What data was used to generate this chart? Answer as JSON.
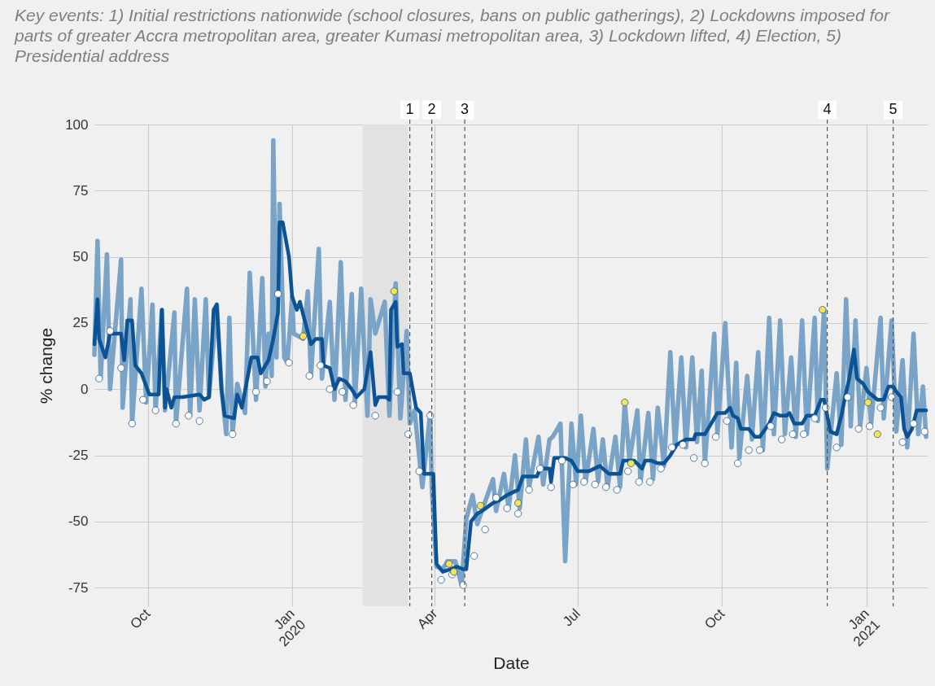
{
  "chart_data": {
    "type": "line",
    "title": "Key events: 1) Initial restrictions nationwide (school closures, bans on public gatherings), 2) Lockdowns imposed for parts of greater Accra metropolitan area, greater Kumasi metropolitan area, 3) Lockdown lifted, 4) Election, 5) Presidential address",
    "xlabel": "Date",
    "ylabel": "% change",
    "grid": true,
    "xlim": [
      "2019-08-28",
      "2021-02-09"
    ],
    "ylim": [
      -82,
      100
    ],
    "yticks": [
      -75,
      -50,
      -25,
      0,
      25,
      50,
      75,
      100
    ],
    "xticks": [
      {
        "value": "2019-10-01",
        "label": "Oct"
      },
      {
        "value": "2020-01-01",
        "label": "Jan 2020"
      },
      {
        "value": "2020-04-01",
        "label": "Apr"
      },
      {
        "value": "2020-07-01",
        "label": "Jul"
      },
      {
        "value": "2020-10-01",
        "label": "Oct"
      },
      {
        "value": "2021-01-01",
        "label": "Jan 2021"
      }
    ],
    "bands": [
      {
        "axis": "x",
        "from": "2020-02-15",
        "to": "2020-03-15",
        "color": "#e2e2e2"
      }
    ],
    "ref_lines": [
      {
        "axis": "x",
        "value": "2020-03-16",
        "label": "1",
        "color": "#555555",
        "line_style": "dashed"
      },
      {
        "axis": "x",
        "value": "2020-03-30",
        "label": "2",
        "color": "#555555",
        "line_style": "dashed"
      },
      {
        "axis": "x",
        "value": "2020-04-20",
        "label": "3",
        "color": "#555555",
        "line_style": "dashed"
      },
      {
        "axis": "x",
        "value": "2020-12-07",
        "label": "4",
        "color": "#555555",
        "line_style": "dashed"
      },
      {
        "axis": "x",
        "value": "2021-01-18",
        "label": "5",
        "color": "#555555",
        "line_style": "dashed"
      }
    ],
    "series": [
      {
        "type": "line",
        "color": "#7aa3c8",
        "x": [
          "2019-08-28",
          "2019-08-30",
          "2019-09-01",
          "2019-09-05",
          "2019-09-07",
          "2019-09-14",
          "2019-09-15",
          "2019-09-20",
          "2019-09-21",
          "2019-09-27",
          "2019-09-30",
          "2019-10-04",
          "2019-10-06",
          "2019-10-10",
          "2019-10-12",
          "2019-10-18",
          "2019-10-19",
          "2019-10-26",
          "2019-10-28",
          "2019-10-31",
          "2019-11-03",
          "2019-11-07",
          "2019-11-09",
          "2019-11-14",
          "2019-11-17",
          "2019-11-19",
          "2019-11-20",
          "2019-11-22",
          "2019-11-24",
          "2019-11-27",
          "2019-12-02",
          "2019-12-05",
          "2019-12-09",
          "2019-12-13",
          "2019-12-15",
          "2019-12-17",
          "2019-12-19",
          "2019-12-20",
          "2019-12-22",
          "2019-12-24",
          "2019-12-27",
          "2019-12-29",
          "2020-01-01",
          "2020-01-02",
          "2020-01-08",
          "2020-01-11",
          "2020-01-13",
          "2020-01-18",
          "2020-01-20",
          "2020-01-25",
          "2020-01-28",
          "2020-02-01",
          "2020-02-04",
          "2020-02-08",
          "2020-02-10",
          "2020-02-14",
          "2020-02-18",
          "2020-02-20",
          "2020-02-23",
          "2020-02-29",
          "2020-03-03",
          "2020-03-07",
          "2020-03-10",
          "2020-03-14",
          "2020-03-16",
          "2020-03-19",
          "2020-03-24",
          "2020-03-29",
          "2020-03-30",
          "2020-04-02",
          "2020-04-06",
          "2020-04-09",
          "2020-04-14",
          "2020-04-18",
          "2020-04-21",
          "2020-04-25",
          "2020-04-28",
          "2020-05-08",
          "2020-05-10",
          "2020-05-15",
          "2020-05-18",
          "2020-05-22",
          "2020-05-25",
          "2020-05-29",
          "2020-05-31",
          "2020-06-06",
          "2020-06-09",
          "2020-06-13",
          "2020-06-15",
          "2020-06-20",
          "2020-06-23",
          "2020-06-27",
          "2020-06-30",
          "2020-07-03",
          "2020-07-06",
          "2020-07-11",
          "2020-07-14",
          "2020-07-17",
          "2020-07-20",
          "2020-07-25",
          "2020-07-28",
          "2020-07-31",
          "2020-08-03",
          "2020-08-08",
          "2020-08-10",
          "2020-08-15",
          "2020-08-18",
          "2020-08-21",
          "2020-08-25",
          "2020-08-29",
          "2020-09-01",
          "2020-09-05",
          "2020-09-08",
          "2020-09-12",
          "2020-09-15",
          "2020-09-18",
          "2020-09-20",
          "2020-09-26",
          "2020-09-28",
          "2020-10-03",
          "2020-10-07",
          "2020-10-10",
          "2020-10-12",
          "2020-10-17",
          "2020-10-20",
          "2020-10-24",
          "2020-10-27",
          "2020-10-31",
          "2020-11-03",
          "2020-11-07",
          "2020-11-10",
          "2020-11-14",
          "2020-11-17",
          "2020-11-21",
          "2020-11-24",
          "2020-11-29",
          "2020-12-01",
          "2020-12-05",
          "2020-12-07",
          "2020-12-13",
          "2020-12-16",
          "2020-12-19",
          "2020-12-22",
          "2020-12-25",
          "2020-12-28",
          "2021-01-01",
          "2021-01-04",
          "2021-01-10",
          "2021-01-12",
          "2021-01-17",
          "2021-01-20",
          "2021-01-24",
          "2021-01-27",
          "2021-01-31",
          "2021-02-03",
          "2021-02-06",
          "2021-02-08"
        ],
        "values": [
          13,
          56,
          4,
          51,
          0,
          49,
          -7,
          34,
          -13,
          38,
          -5,
          32,
          -8,
          30,
          -8,
          29,
          -13,
          38,
          -10,
          34,
          -8,
          34,
          -3,
          32,
          null,
          -11,
          -17,
          27,
          -17,
          2,
          -9,
          44,
          -4,
          42,
          1,
          21,
          5,
          94,
          12,
          70,
          12,
          10,
          35,
          21,
          19,
          37,
          5,
          53,
          4,
          33,
          -4,
          48,
          -4,
          36,
          -5,
          38,
          -10,
          34,
          21,
          33,
          -10,
          40,
          -11,
          22,
          -13,
          -8,
          -37,
          -9,
          -37,
          -67,
          -68,
          -65,
          -65,
          -74,
          -49,
          -40,
          -51,
          -34,
          -46,
          -32,
          -45,
          -25,
          -45,
          -19,
          -37,
          -18,
          -36,
          -19,
          -18,
          -13,
          -65,
          -13,
          -36,
          -10,
          -35,
          -15,
          -35,
          -19,
          -37,
          -18,
          -37,
          -5,
          -27,
          -8,
          -35,
          -9,
          -34,
          -7,
          -29,
          14,
          -22,
          12,
          -22,
          12,
          -20,
          7,
          -28,
          21,
          -17,
          25,
          -22,
          10,
          -26,
          5,
          -19,
          14,
          -23,
          27,
          -17,
          26,
          -17,
          12,
          -18,
          26,
          -17,
          27,
          -12,
          30,
          -30,
          6,
          -21,
          34,
          -14,
          26,
          -14,
          8,
          -13,
          27,
          -11,
          26,
          -16,
          11,
          -22,
          21,
          -17,
          1,
          -18
        ]
      },
      {
        "type": "line",
        "color": "#0b5394",
        "x": [
          "2019-08-28",
          "2019-08-30",
          "2019-08-31",
          "2019-09-04",
          "2019-09-07",
          "2019-09-14",
          "2019-09-16",
          "2019-09-18",
          "2019-09-21",
          "2019-09-23",
          "2019-09-27",
          "2019-10-02",
          "2019-10-08",
          "2019-10-10",
          "2019-10-12",
          "2019-10-13",
          "2019-10-16",
          "2019-10-18",
          "2019-10-23",
          "2019-11-03",
          "2019-11-06",
          "2019-11-09",
          "2019-11-12",
          "2019-11-14",
          "2019-11-17",
          "2019-11-19",
          "2019-11-25",
          "2019-11-27",
          "2019-11-30",
          "2019-12-06",
          "2019-12-10",
          "2019-12-12",
          "2019-12-17",
          "2019-12-20",
          "2019-12-23",
          "2019-12-24",
          "2019-12-26",
          "2019-12-30",
          "2020-01-01",
          "2020-01-04",
          "2020-01-06",
          "2020-01-09",
          "2020-01-13",
          "2020-01-16",
          "2020-01-20",
          "2020-01-21",
          "2020-01-25",
          "2020-01-28",
          "2020-01-31",
          "2020-02-04",
          "2020-02-08",
          "2020-02-11",
          "2020-02-16",
          "2020-02-20",
          "2020-02-23",
          "2020-02-25",
          "2020-03-01",
          "2020-03-03",
          "2020-03-04",
          "2020-03-07",
          "2020-03-08",
          "2020-03-11",
          "2020-03-12",
          "2020-03-16",
          "2020-03-20",
          "2020-03-23",
          "2020-03-25",
          "2020-03-31",
          "2020-04-02",
          "2020-04-06",
          "2020-04-11",
          "2020-04-15",
          "2020-04-19",
          "2020-04-21",
          "2020-04-24",
          "2020-04-28",
          "2020-05-01",
          "2020-05-08",
          "2020-05-12",
          "2020-05-17",
          "2020-05-24",
          "2020-05-27",
          "2020-06-02",
          "2020-06-05",
          "2020-06-07",
          "2020-06-13",
          "2020-06-14",
          "2020-06-16",
          "2020-06-23",
          "2020-06-27",
          "2020-07-01",
          "2020-07-08",
          "2020-07-15",
          "2020-07-21",
          "2020-07-28",
          "2020-07-30",
          "2020-08-06",
          "2020-08-11",
          "2020-08-13",
          "2020-08-17",
          "2020-08-21",
          "2020-08-25",
          "2020-08-29",
          "2020-09-02",
          "2020-09-08",
          "2020-09-13",
          "2020-09-14",
          "2020-09-20",
          "2020-09-25",
          "2020-09-28",
          "2020-10-03",
          "2020-10-06",
          "2020-10-08",
          "2020-10-11",
          "2020-10-13",
          "2020-10-18",
          "2020-10-22",
          "2020-10-25",
          "2020-10-31",
          "2020-11-03",
          "2020-11-07",
          "2020-11-11",
          "2020-11-13",
          "2020-11-16",
          "2020-11-21",
          "2020-11-24",
          "2020-11-29",
          "2020-12-01",
          "2020-12-03",
          "2020-12-05",
          "2020-12-09",
          "2020-12-13",
          "2020-12-16",
          "2020-12-18",
          "2020-12-21",
          "2020-12-24",
          "2020-12-26",
          "2020-12-30",
          "2021-01-02",
          "2021-01-06",
          "2021-01-08",
          "2021-01-12",
          "2021-01-15",
          "2021-01-18",
          "2021-01-20",
          "2021-01-23",
          "2021-01-25",
          "2021-01-27",
          "2021-01-30",
          "2021-02-02",
          "2021-02-08"
        ],
        "values": [
          17,
          34,
          19,
          12,
          21,
          21,
          11,
          26,
          26,
          9,
          6,
          -2,
          -2,
          30,
          -7,
          0,
          -7,
          -3,
          -3,
          -2,
          -4,
          -3,
          30,
          32,
          null,
          -10,
          -11,
          -2,
          -7,
          12,
          12,
          6,
          11,
          19,
          29,
          63,
          63,
          50,
          35,
          30,
          33,
          26,
          17,
          19,
          19,
          9,
          8,
          0,
          4,
          3,
          0,
          -3,
          0,
          14,
          -6,
          -3,
          -3,
          -4,
          30,
          33,
          16,
          17,
          6,
          6,
          -7,
          -9,
          -32,
          -32,
          -66,
          -69,
          -68,
          -67,
          -68,
          -68,
          -50,
          -47,
          -46,
          -43,
          -42,
          -40,
          -38,
          -33,
          -33,
          -33,
          -30,
          -30,
          -35,
          -26,
          -26,
          -27,
          -31,
          -31,
          -29,
          -32,
          -32,
          -27,
          -27,
          -30,
          -27,
          -27,
          -28,
          -28,
          -25,
          -21,
          -19,
          -19,
          -17,
          -17,
          -12,
          -9,
          -9,
          -7,
          -10,
          -11,
          -15,
          -15,
          -18,
          -18,
          -13,
          -9,
          -10,
          -10,
          -9,
          -13,
          -13,
          -10,
          -10,
          -7,
          -4,
          -4,
          -16,
          -17,
          -10,
          -4,
          4,
          15,
          4,
          2,
          -1,
          -3,
          -4,
          -4,
          1,
          1,
          -1,
          -3,
          -15,
          -18,
          -15,
          -8,
          -8
        ]
      },
      {
        "type": "scatter",
        "marker": "circle",
        "color": "#ffffff",
        "x": [
          "2019-08-31",
          "2019-09-07",
          "2019-09-14",
          "2019-09-21",
          "2019-09-28",
          "2019-10-06",
          "2019-10-19",
          "2019-10-27",
          "2019-11-03",
          "2019-11-24",
          "2019-12-09",
          "2019-12-16",
          "2019-12-23",
          "2019-12-30",
          "2020-01-12",
          "2020-01-19",
          "2020-01-25",
          "2020-02-02",
          "2020-02-09",
          "2020-02-23",
          "2020-03-08",
          "2020-03-15",
          "2020-03-22",
          "2020-03-29",
          "2020-04-05",
          "2020-04-12",
          "2020-04-19",
          "2020-04-26",
          "2020-05-03",
          "2020-05-10",
          "2020-05-17",
          "2020-05-24",
          "2020-05-31",
          "2020-06-07",
          "2020-06-14",
          "2020-06-21",
          "2020-06-28",
          "2020-07-05",
          "2020-07-12",
          "2020-07-19",
          "2020-07-26",
          "2020-08-02",
          "2020-08-09",
          "2020-08-16",
          "2020-08-23",
          "2020-08-30",
          "2020-09-06",
          "2020-09-13",
          "2020-09-20",
          "2020-09-27",
          "2020-10-04",
          "2020-10-11",
          "2020-10-18",
          "2020-10-25",
          "2020-11-01",
          "2020-11-08",
          "2020-11-15",
          "2020-11-22",
          "2020-11-29",
          "2020-12-06",
          "2020-12-13",
          "2020-12-20",
          "2020-12-27",
          "2021-01-03",
          "2021-01-10",
          "2021-01-17",
          "2021-01-24",
          "2021-01-31",
          "2021-02-07"
        ],
        "values": [
          4,
          22,
          8,
          -13,
          -4,
          -8,
          -13,
          -10,
          -12,
          -17,
          -1,
          3,
          36,
          10,
          5,
          9,
          0,
          -1,
          -6,
          -10,
          -1,
          -17,
          -31,
          -10,
          -72,
          -70,
          -74,
          -63,
          -53,
          -41,
          -45,
          -47,
          -38,
          -30,
          -37,
          -27,
          -36,
          -35,
          -36,
          -37,
          -38,
          -31,
          -35,
          -35,
          -30,
          -22,
          -21,
          -26,
          -28,
          -18,
          -12,
          -28,
          -23,
          -23,
          -14,
          -19,
          -17,
          -17,
          -11,
          -7,
          -22,
          -3,
          -15,
          -14,
          -7,
          -3,
          -20,
          -13,
          -16
        ]
      },
      {
        "type": "scatter",
        "marker": "circle",
        "color": "#f7e34a",
        "x": [
          "2020-01-08",
          "2020-03-06",
          "2020-04-10",
          "2020-04-13",
          "2020-04-30",
          "2020-05-24",
          "2020-07-31",
          "2020-08-04",
          "2020-12-04",
          "2021-01-02",
          "2021-01-08"
        ],
        "values": [
          20,
          37,
          -66,
          -69,
          -44,
          -43,
          -5,
          -28,
          30,
          -5,
          -17
        ]
      }
    ]
  }
}
